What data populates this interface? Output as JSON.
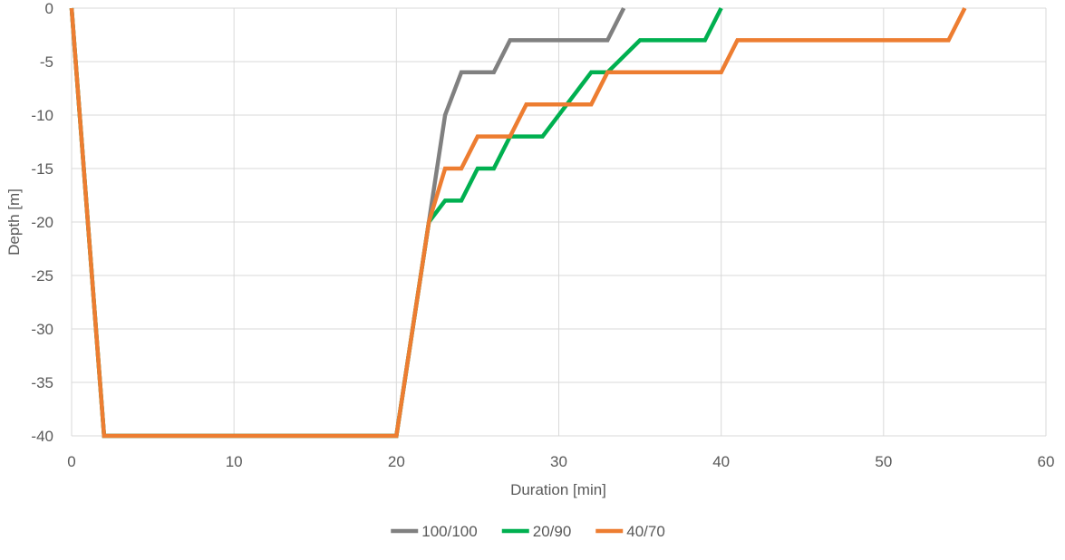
{
  "chart_data": {
    "type": "line",
    "title": "",
    "xlabel": "Duration [min]",
    "ylabel": "Depth [m]",
    "xlim": [
      0,
      60
    ],
    "ylim": [
      -40,
      0
    ],
    "x_ticks": [
      0,
      10,
      20,
      30,
      40,
      50,
      60
    ],
    "y_ticks": [
      0,
      -5,
      -10,
      -15,
      -20,
      -25,
      -30,
      -35,
      -40
    ],
    "x_tick_labels": [
      "0",
      "10",
      "20",
      "30",
      "40",
      "50",
      "60"
    ],
    "y_tick_labels": [
      "0",
      "-5",
      "-10",
      "-15",
      "-20",
      "-25",
      "-30",
      "-35",
      "-40"
    ],
    "grid": "vertical-and-horizontal",
    "legend_position": "bottom",
    "series": [
      {
        "name": "100/100",
        "color": "#808080",
        "points": [
          [
            0,
            0
          ],
          [
            2,
            -40
          ],
          [
            20,
            -40
          ],
          [
            22,
            -20
          ],
          [
            23,
            -10
          ],
          [
            24,
            -6
          ],
          [
            26,
            -6
          ],
          [
            27,
            -3
          ],
          [
            33,
            -3
          ],
          [
            34,
            0
          ]
        ]
      },
      {
        "name": "20/90",
        "color": "#00b050",
        "points": [
          [
            0,
            0
          ],
          [
            2,
            -40
          ],
          [
            20,
            -40
          ],
          [
            22,
            -20
          ],
          [
            23,
            -18
          ],
          [
            24,
            -18
          ],
          [
            25,
            -15
          ],
          [
            26,
            -15
          ],
          [
            27,
            -12
          ],
          [
            29,
            -12
          ],
          [
            32,
            -6
          ],
          [
            33,
            -6
          ],
          [
            35,
            -3
          ],
          [
            39,
            -3
          ],
          [
            40,
            0
          ]
        ]
      },
      {
        "name": "40/70",
        "color": "#ed7d31",
        "points": [
          [
            0,
            0
          ],
          [
            2,
            -40
          ],
          [
            20,
            -40
          ],
          [
            22,
            -20
          ],
          [
            23,
            -15
          ],
          [
            24,
            -15
          ],
          [
            25,
            -12
          ],
          [
            27,
            -12
          ],
          [
            28,
            -9
          ],
          [
            32,
            -9
          ],
          [
            33,
            -6
          ],
          [
            40,
            -6
          ],
          [
            41,
            -3
          ],
          [
            54,
            -3
          ],
          [
            55,
            0
          ]
        ]
      }
    ]
  }
}
